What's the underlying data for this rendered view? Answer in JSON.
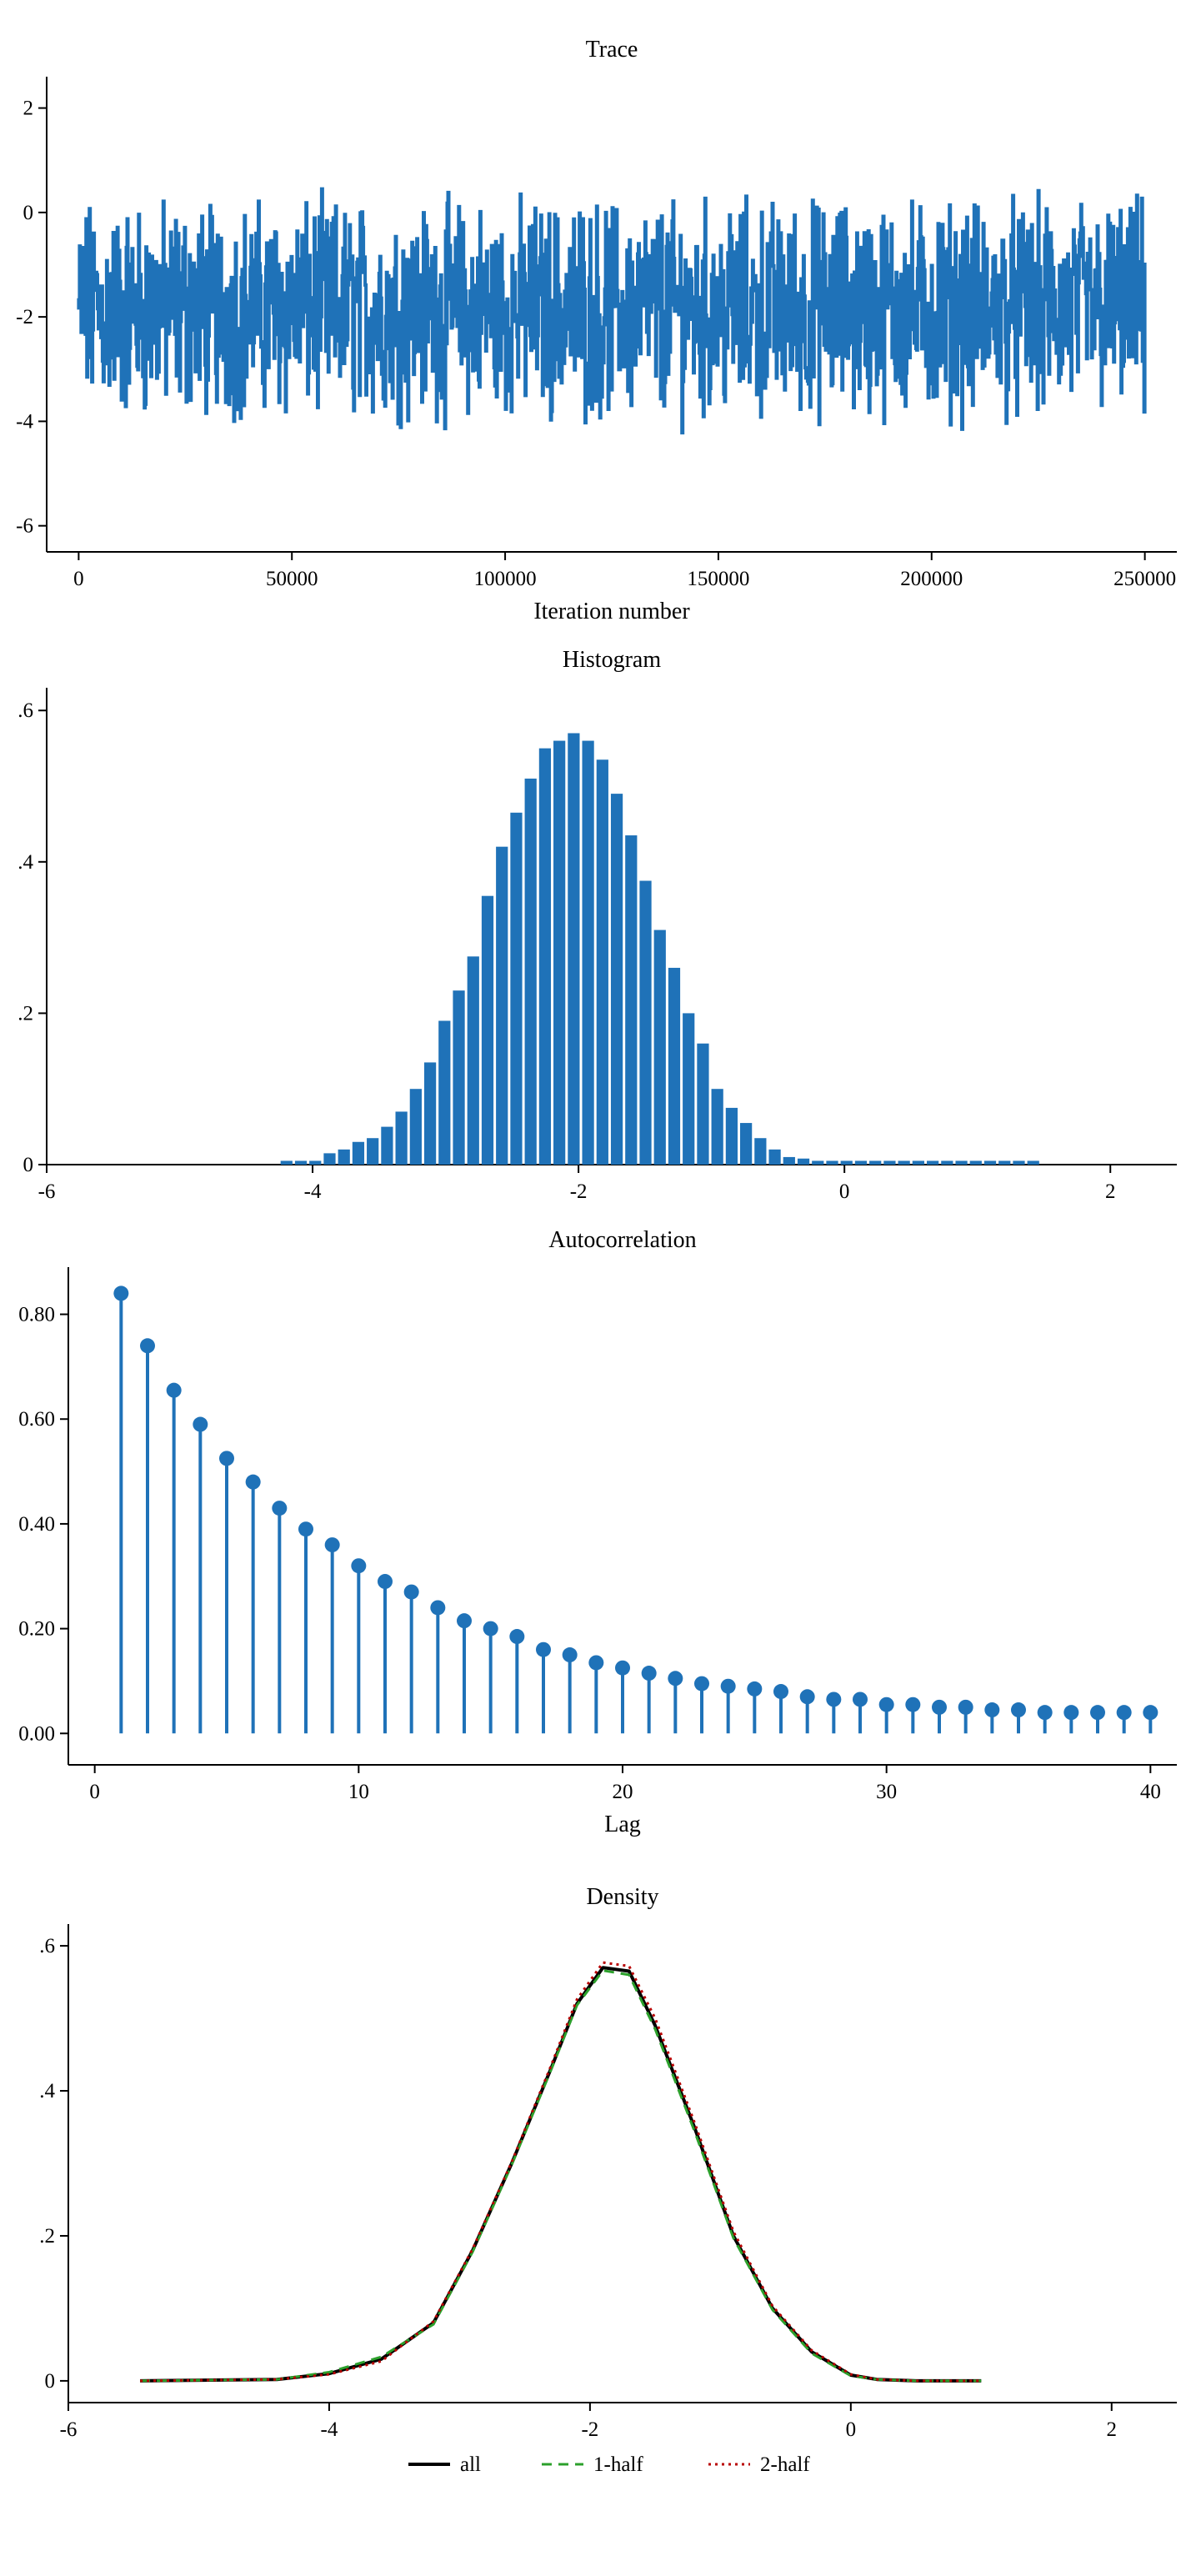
{
  "colors": {
    "bar": "#1f72b8",
    "all": "#000000",
    "half1": "#2ca02c",
    "half2": "#b80000"
  },
  "chart_data": [
    {
      "type": "line",
      "title": "Trace",
      "xlabel": "Iteration number",
      "ylabel": "",
      "xlim": [
        -7500,
        257500
      ],
      "ylim": [
        -6.5,
        2.6
      ],
      "xticks": [
        0,
        50000,
        100000,
        150000,
        200000,
        250000
      ],
      "xtick_labels": [
        "0",
        "50000",
        "100000",
        "150000",
        "200000",
        "250000"
      ],
      "yticks": [
        2,
        0,
        -2,
        -4,
        -6
      ],
      "ytick_labels": [
        "2",
        "0",
        "-2",
        "-4",
        "-6"
      ],
      "series": [
        {
          "x": [
            0,
            250000
          ],
          "values": [
            -1.86,
            -1.86
          ],
          "band_low": -4.5,
          "band_high": 0.8
        }
      ]
    },
    {
      "type": "bar",
      "title": "Histogram",
      "xlabel": "",
      "ylabel": "",
      "xlim": [
        -6,
        2.5
      ],
      "ylim": [
        0,
        0.63
      ],
      "xticks": [
        -6,
        -4,
        -2,
        0,
        2
      ],
      "xtick_labels": [
        "-6",
        "-4",
        "-2",
        "0",
        "2"
      ],
      "yticks": [
        0.6,
        0.4,
        0.2,
        0
      ],
      "ytick_labels": [
        ".6",
        ".4",
        ".2",
        "0"
      ],
      "bin_width": 0.108,
      "x": [
        -4.25,
        -4.142,
        -4.034,
        -3.926,
        -3.818,
        -3.71,
        -3.602,
        -3.494,
        -3.386,
        -3.278,
        -3.17,
        -3.062,
        -2.954,
        -2.846,
        -2.738,
        -2.63,
        -2.522,
        -2.414,
        -2.306,
        -2.198,
        -2.09,
        -1.982,
        -1.874,
        -1.766,
        -1.658,
        -1.55,
        -1.442,
        -1.334,
        -1.226,
        -1.118,
        -1.01,
        -0.902,
        -0.794,
        -0.686,
        -0.578,
        -0.47,
        -0.362,
        -0.254,
        -0.146,
        -0.038,
        0.07,
        0.178,
        0.286,
        0.394,
        0.502,
        0.61,
        0.718,
        0.826,
        0.934,
        1.042,
        1.15,
        1.258,
        1.366
      ],
      "values": [
        0.005,
        0.005,
        0.005,
        0.015,
        0.02,
        0.03,
        0.035,
        0.05,
        0.07,
        0.1,
        0.135,
        0.19,
        0.23,
        0.275,
        0.355,
        0.42,
        0.465,
        0.51,
        0.55,
        0.56,
        0.57,
        0.56,
        0.535,
        0.49,
        0.435,
        0.375,
        0.31,
        0.26,
        0.2,
        0.16,
        0.1,
        0.075,
        0.055,
        0.035,
        0.02,
        0.01,
        0.008,
        0.005,
        0.005,
        0.005,
        0.005,
        0.005,
        0.005,
        0.005,
        0.005,
        0.005,
        0.005,
        0.005,
        0.005,
        0.005,
        0.005,
        0.005,
        0.005
      ]
    },
    {
      "type": "scatter",
      "title": "Autocorrelation",
      "xlabel": "Lag",
      "ylabel": "",
      "xlim": [
        -1,
        41
      ],
      "ylim": [
        -0.06,
        0.89
      ],
      "xticks": [
        0,
        10,
        20,
        30,
        40
      ],
      "xtick_labels": [
        "0",
        "10",
        "20",
        "30",
        "40"
      ],
      "yticks": [
        0.8,
        0.6,
        0.4,
        0.2,
        0
      ],
      "ytick_labels": [
        "0.80",
        "0.60",
        "0.40",
        "0.20",
        "0.00"
      ],
      "x": [
        1,
        2,
        3,
        4,
        5,
        6,
        7,
        8,
        9,
        10,
        11,
        12,
        13,
        14,
        15,
        16,
        17,
        18,
        19,
        20,
        21,
        22,
        23,
        24,
        25,
        26,
        27,
        28,
        29,
        30,
        31,
        32,
        33,
        34,
        35,
        36,
        37,
        38,
        39,
        40
      ],
      "values": [
        0.84,
        0.74,
        0.655,
        0.59,
        0.525,
        0.48,
        0.43,
        0.39,
        0.36,
        0.32,
        0.29,
        0.27,
        0.24,
        0.215,
        0.2,
        0.185,
        0.16,
        0.15,
        0.135,
        0.125,
        0.115,
        0.105,
        0.095,
        0.09,
        0.085,
        0.08,
        0.07,
        0.065,
        0.065,
        0.055,
        0.055,
        0.05,
        0.05,
        0.045,
        0.045,
        0.04,
        0.04,
        0.04,
        0.04,
        0.04
      ]
    },
    {
      "type": "line",
      "title": "Density",
      "xlabel": "",
      "ylabel": "",
      "xlim": [
        -6,
        2.5
      ],
      "ylim": [
        -0.03,
        0.63
      ],
      "xticks": [
        -6,
        -4,
        -2,
        0,
        2
      ],
      "xtick_labels": [
        "-6",
        "-4",
        "-2",
        "0",
        "2"
      ],
      "yticks": [
        0.6,
        0.4,
        0.2,
        0
      ],
      "ytick_labels": [
        ".6",
        ".4",
        ".2",
        "0"
      ],
      "legend_position": "bottom",
      "series": [
        {
          "name": "all",
          "style": "solid",
          "x": [
            -5.45,
            -4.4,
            -4.0,
            -3.6,
            -3.2,
            -2.9,
            -2.6,
            -2.3,
            -2.1,
            -1.9,
            -1.7,
            -1.5,
            -1.2,
            -0.9,
            -0.6,
            -0.3,
            0.0,
            0.2,
            0.5,
            1.0
          ],
          "values": [
            0.0,
            0.002,
            0.01,
            0.03,
            0.08,
            0.18,
            0.3,
            0.43,
            0.52,
            0.57,
            0.565,
            0.49,
            0.35,
            0.2,
            0.1,
            0.04,
            0.008,
            0.002,
            0.0,
            0.0
          ]
        },
        {
          "name": "1-half",
          "style": "dashed",
          "x": [
            -5.45,
            -4.4,
            -4.0,
            -3.6,
            -3.2,
            -2.9,
            -2.6,
            -2.3,
            -2.1,
            -1.9,
            -1.7,
            -1.5,
            -1.2,
            -0.9,
            -0.6,
            -0.3,
            0.0,
            0.2,
            0.5,
            1.0
          ],
          "values": [
            0.0,
            0.002,
            0.012,
            0.033,
            0.078,
            0.178,
            0.298,
            0.428,
            0.518,
            0.566,
            0.56,
            0.485,
            0.345,
            0.197,
            0.098,
            0.038,
            0.007,
            0.002,
            0.0,
            0.0
          ]
        },
        {
          "name": "2-half",
          "style": "dotted",
          "x": [
            -5.45,
            -4.4,
            -4.0,
            -3.6,
            -3.2,
            -2.9,
            -2.6,
            -2.3,
            -2.1,
            -1.9,
            -1.7,
            -1.5,
            -1.2,
            -0.9,
            -0.6,
            -0.3,
            0.0,
            0.2,
            0.5,
            1.0
          ],
          "values": [
            0.0,
            0.002,
            0.009,
            0.027,
            0.082,
            0.182,
            0.302,
            0.434,
            0.526,
            0.577,
            0.572,
            0.5,
            0.357,
            0.206,
            0.103,
            0.042,
            0.009,
            0.002,
            0.0,
            0.0
          ]
        }
      ]
    }
  ]
}
